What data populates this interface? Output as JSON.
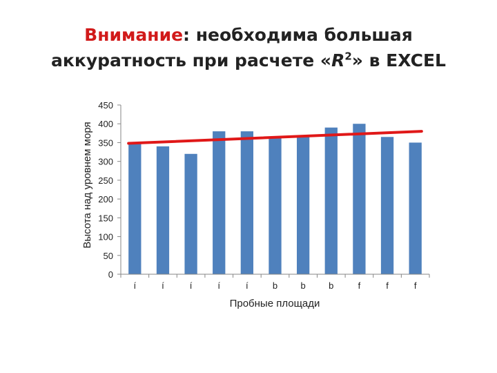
{
  "slide": {
    "title_accent": "Внимание",
    "title_rest": ": необходима большая",
    "title_line2_pre": "аккуратность при расчете «",
    "title_line2_var": "R",
    "title_line2_sup": "2",
    "title_line2_post": "» в EXCEL"
  },
  "colors": {
    "bar": "#4f81bd",
    "trendline": "#e01818",
    "accent": "#d11a1a",
    "axis": "#868686"
  },
  "chart_data": {
    "type": "bar",
    "categories": [
      "í",
      "í",
      "í",
      "í",
      "í",
      "b",
      "b",
      "b",
      "f",
      "f",
      "f"
    ],
    "values": [
      350,
      340,
      320,
      380,
      380,
      365,
      365,
      390,
      400,
      365,
      350
    ],
    "trendline": {
      "type": "linear",
      "start": 348,
      "end": 380
    },
    "xlabel": "Пробные площади",
    "ylabel": "Высота над уровнем моря",
    "ylim": [
      0,
      450
    ],
    "yticks": [
      0,
      50,
      100,
      150,
      200,
      250,
      300,
      350,
      400,
      450
    ],
    "grid": false,
    "legend": "none"
  }
}
